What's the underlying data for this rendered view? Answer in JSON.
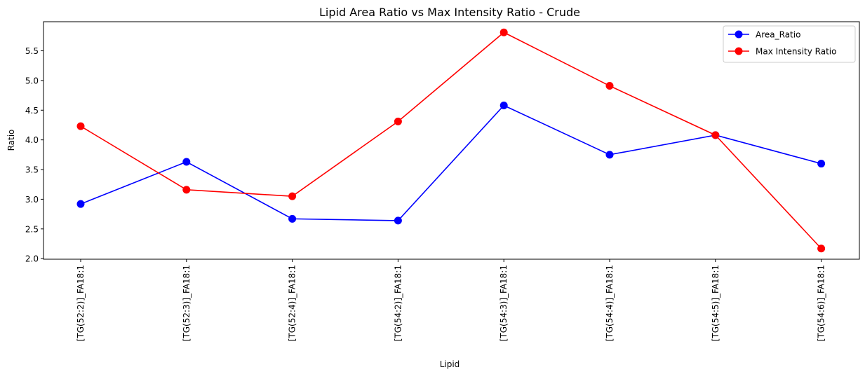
{
  "chart_data": {
    "type": "line",
    "title": "Lipid Area Ratio vs Max Intensity Ratio - Crude",
    "xlabel": "Lipid",
    "ylabel": "Ratio",
    "categories": [
      "[TG(52:2)]_FA18:1",
      "[TG(52:3)]_FA18:1",
      "[TG(52:4)]_FA18:1",
      "[TG(54:2)]_FA18:1",
      "[TG(54:3)]_FA18:1",
      "[TG(54:4)]_FA18:1",
      "[TG(54:5)]_FA18:1",
      "[TG(54:6)]_FA18:1"
    ],
    "series": [
      {
        "name": "Area_Ratio",
        "color": "#0000ff",
        "marker": "circle",
        "values": [
          2.92,
          3.63,
          2.67,
          2.64,
          4.58,
          3.75,
          4.08,
          3.6
        ]
      },
      {
        "name": "Max Intensity Ratio",
        "color": "#ff0000",
        "marker": "circle",
        "values": [
          4.23,
          3.16,
          3.05,
          4.31,
          5.81,
          4.91,
          4.08,
          2.17
        ]
      }
    ],
    "ylim": [
      1.99,
      5.99
    ],
    "yticks": [
      "2.0",
      "2.5",
      "3.0",
      "3.5",
      "4.0",
      "4.5",
      "5.0",
      "5.5"
    ],
    "grid": false,
    "legend_position": "top-right"
  }
}
